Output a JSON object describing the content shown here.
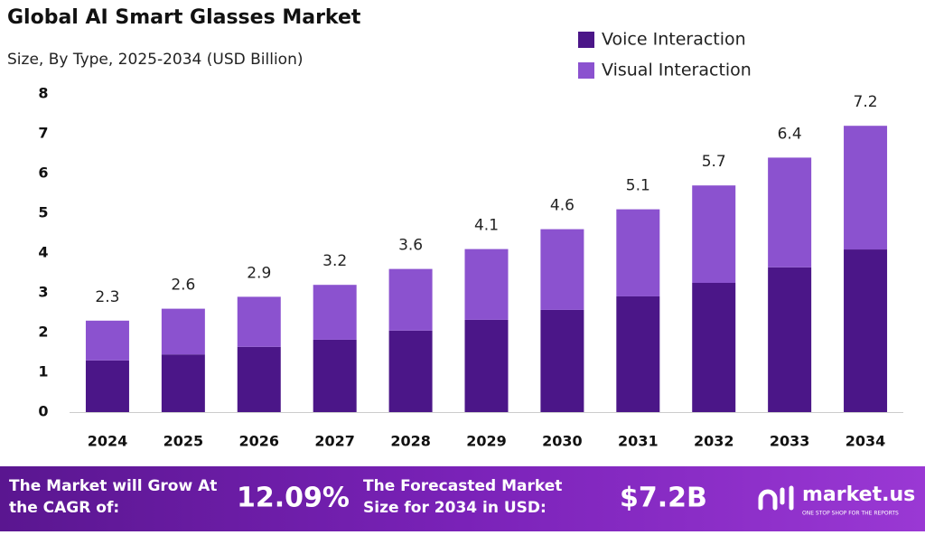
{
  "chart_data": {
    "type": "stacked-bar",
    "title": "Global AI Smart Glasses Market",
    "subtitle": "Size, By Type, 2025-2034 (USD Billion)",
    "categories": [
      "2024",
      "2025",
      "2026",
      "2027",
      "2028",
      "2029",
      "2030",
      "2031",
      "2032",
      "2033",
      "2034"
    ],
    "series": [
      {
        "name": "Voice Interaction",
        "color": "#4b1688",
        "values": [
          1.3,
          1.45,
          1.64,
          1.82,
          2.05,
          2.32,
          2.57,
          2.91,
          3.25,
          3.64,
          4.09
        ]
      },
      {
        "name": "Visual Interaction",
        "color": "#8b52cf",
        "values": [
          1.0,
          1.15,
          1.26,
          1.38,
          1.55,
          1.78,
          2.03,
          2.19,
          2.45,
          2.76,
          3.11
        ]
      }
    ],
    "totals": [
      2.3,
      2.6,
      2.9,
      3.2,
      3.6,
      4.1,
      4.6,
      5.1,
      5.7,
      6.4,
      7.2
    ],
    "ylim": [
      0,
      8
    ],
    "yticks": [
      0,
      1,
      2,
      3,
      4,
      5,
      6,
      7,
      8
    ],
    "grid": false,
    "legend": "top-right"
  },
  "footer": {
    "cagr_text": "The Market will Grow At the CAGR of:",
    "cagr_value": "12.09%",
    "forecast_text": "The Forecasted Market Size for 2034 in USD:",
    "forecast_value": "$7.2B",
    "brand": "market.us",
    "tagline": "ONE STOP SHOP FOR THE REPORTS"
  }
}
